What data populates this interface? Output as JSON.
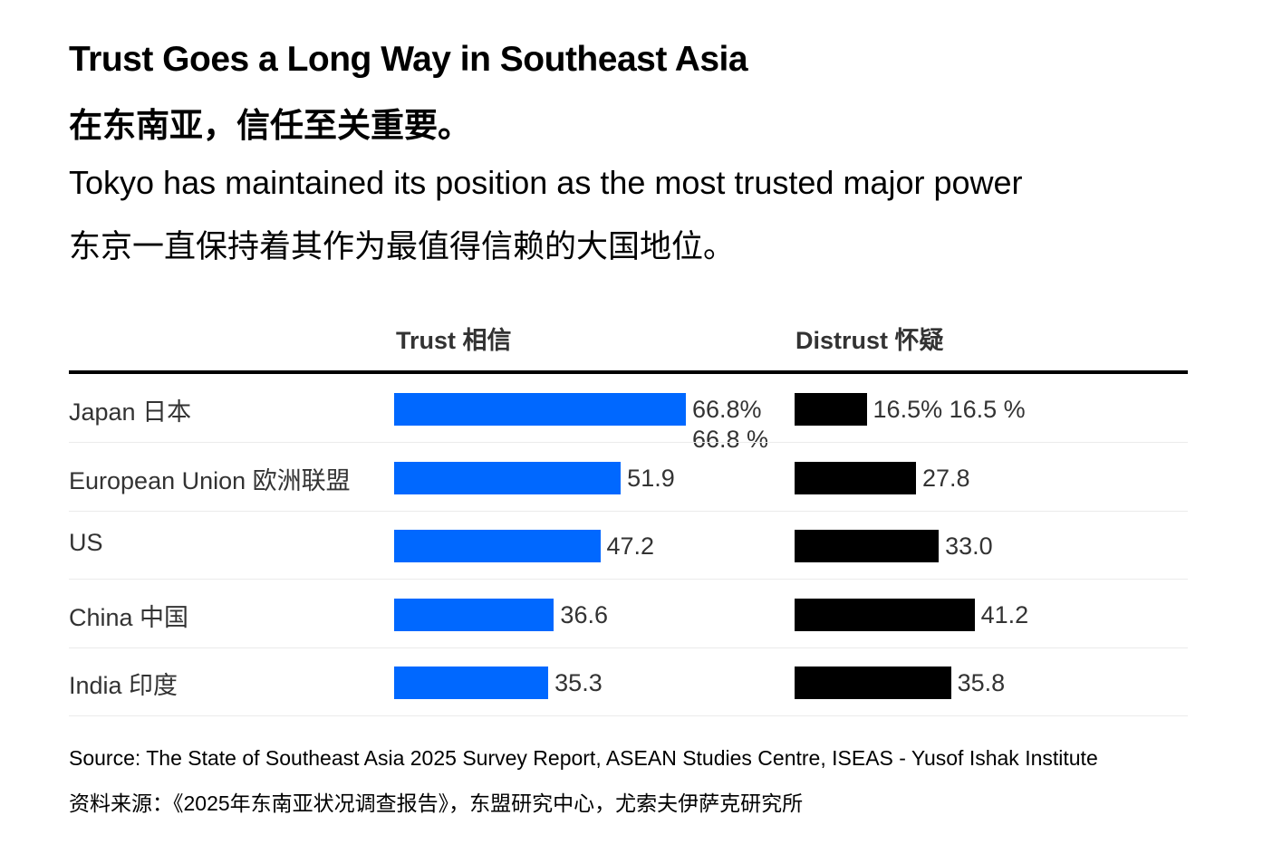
{
  "title": "Trust Goes a Long Way in Southeast Asia",
  "title_zh": "在东南亚，信任至关重要。",
  "subtitle": "Tokyo has maintained its position as the most trusted major power",
  "subtitle_zh": "东京一直保持着其作为最值得信赖的大国地位。",
  "columns": {
    "trust": "Trust  相信",
    "distrust": "Distrust  怀疑"
  },
  "rows": [
    {
      "label": "Japan  日本",
      "trust_label": "66.8%",
      "trust_label_extra": "66.8 %",
      "distrust_label": "16.5%  16.5 %"
    },
    {
      "label": "European Union  欧洲联盟",
      "trust_label": "51.9",
      "distrust_label": "27.8"
    },
    {
      "label": "US",
      "trust_label": "47.2",
      "distrust_label": "33.0"
    },
    {
      "label": "China  中国",
      "trust_label": "36.6",
      "distrust_label": "41.2"
    },
    {
      "label": "India  印度",
      "trust_label": "35.3",
      "distrust_label": "35.8"
    }
  ],
  "source": "Source: The State of Southeast Asia 2025 Survey Report, ASEAN Studies Centre, ISEAS - Yusof Ishak Institute",
  "source_zh": "资料来源：《2025年东南亚状况调查报告》，东盟研究中心，尤索夫伊萨克研究所",
  "colors": {
    "trust": "#0068ff",
    "distrust": "#000000"
  },
  "chart_data": {
    "type": "bar",
    "orientation": "horizontal",
    "title": "Trust Goes a Long Way in Southeast Asia",
    "categories": [
      "Japan  日本",
      "European Union  欧洲联盟",
      "US",
      "China  中国",
      "India  印度"
    ],
    "series": [
      {
        "name": "Trust  相信",
        "values": [
          66.8,
          51.9,
          47.2,
          36.6,
          35.3
        ]
      },
      {
        "name": "Distrust  怀疑",
        "values": [
          16.5,
          27.8,
          33.0,
          41.2,
          35.8
        ]
      }
    ],
    "unit": "%",
    "xlim": [
      0,
      70
    ]
  }
}
